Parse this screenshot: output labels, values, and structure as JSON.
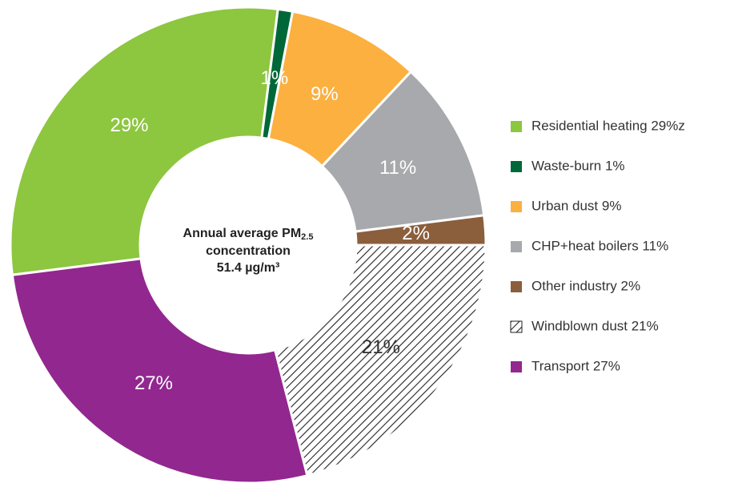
{
  "chart_data": {
    "type": "donut",
    "categories": [
      "Residential heating 29%z",
      "Waste-burn 1%",
      "Urban dust 9%",
      "CHP+heat boilers 11%",
      "Other industry 2%",
      "Windblown dust 21%",
      "Transport 27%"
    ],
    "values": [
      29,
      1,
      9,
      11,
      2,
      21,
      27
    ],
    "value_labels": [
      "29%",
      "1%",
      "9%",
      "11%",
      "2%",
      "21%",
      "27%"
    ],
    "colors": [
      "#8dc63f",
      "#006838",
      "#fbb040",
      "#a7a9ac",
      "#8b5e3c",
      "hatch",
      "#92278f"
    ],
    "center_text": {
      "line1": "Annual average PM",
      "subscript": "2.5",
      "line2": "concentration",
      "line3": "51.4 µg/m³"
    },
    "legend": "right"
  }
}
